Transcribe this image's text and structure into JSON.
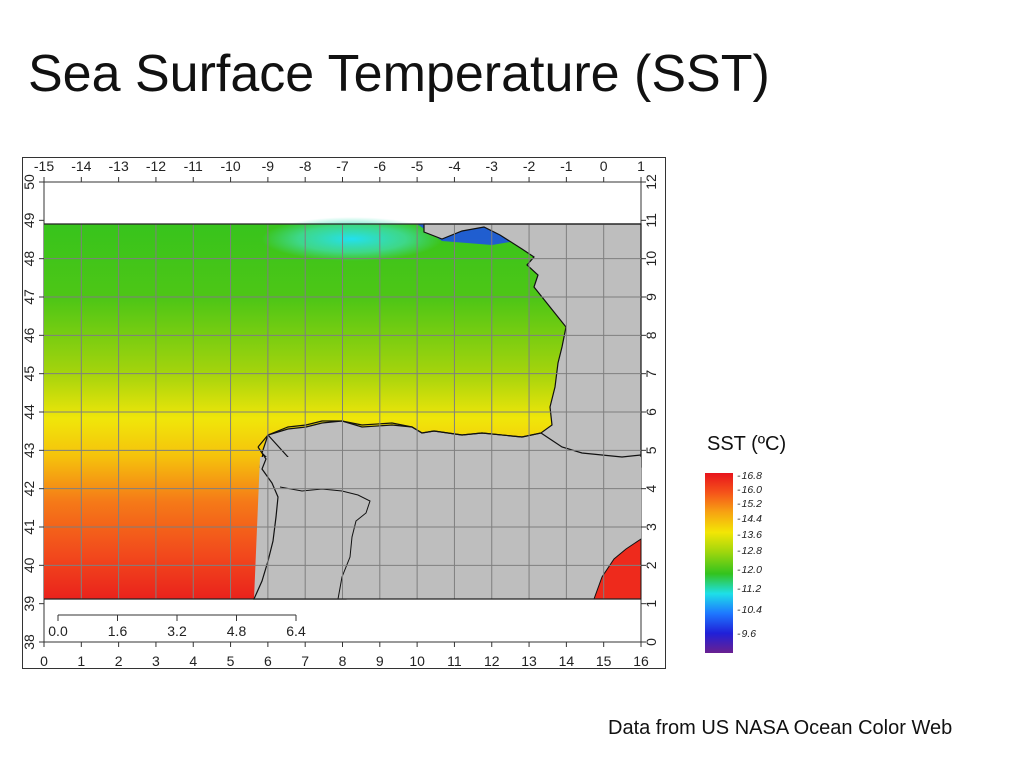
{
  "slide": {
    "title": "Sea Surface Temperature (SST)",
    "source": "Data from US NASA Ocean Color Web"
  },
  "map": {
    "top_lon_labels": [
      "-15",
      "-14",
      "-13",
      "-12",
      "-11",
      "-10",
      "-9",
      "-8",
      "-7",
      "-6",
      "-5",
      "-4",
      "-3",
      "-2",
      "-1",
      "0",
      "1"
    ],
    "left_lat_labels": [
      "50",
      "49",
      "48",
      "47",
      "46",
      "45",
      "44",
      "43",
      "42",
      "41",
      "40",
      "39",
      "38"
    ],
    "right_axis_labels": [
      "12",
      "11",
      "10",
      "9",
      "8",
      "7",
      "6",
      "5",
      "4",
      "3",
      "2",
      "1",
      "0"
    ],
    "bottom_axis_labels": [
      "0",
      "1",
      "2",
      "3",
      "4",
      "5",
      "6",
      "7",
      "8",
      "9",
      "10",
      "11",
      "12",
      "13",
      "14",
      "15",
      "16"
    ],
    "scale_bar_labels": [
      "0.0",
      "1.6",
      "3.2",
      "4.8",
      "6.4"
    ],
    "land_color": "#bebebe",
    "grid_color": "#7f7f7f"
  },
  "legend": {
    "title": "SST (ºC)",
    "labels": [
      "16.8",
      "16.0",
      "15.2",
      "14.4",
      "13.6",
      "12.8",
      "12.0",
      "11.2",
      "10.4",
      "9.6"
    ],
    "colors": [
      "#e8141c",
      "#f5541a",
      "#f7a412",
      "#f3e605",
      "#9fd60d",
      "#33c31e",
      "#1ee0e8",
      "#1e78ff",
      "#2020d8",
      "#6a2090"
    ]
  }
}
